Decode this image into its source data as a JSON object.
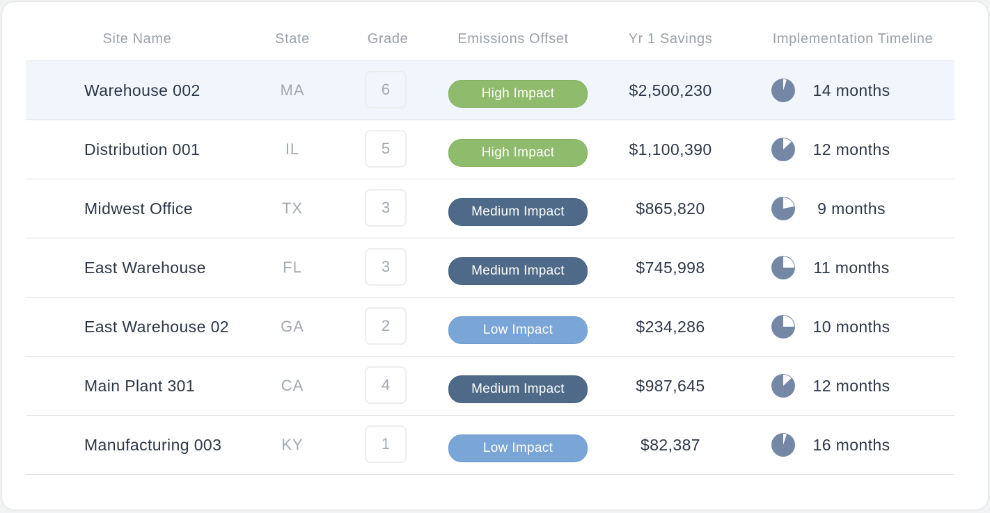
{
  "columns": [
    "Site Name",
    "State",
    "Grade",
    "Emissions Offset",
    "Yr 1 Savings",
    "Implementation Timeline"
  ],
  "rows": [
    {
      "name": "Warehouse 002",
      "state": "MA",
      "grade": "6",
      "impact": "High Impact",
      "impact_level": "high",
      "savings": "$2,500,230",
      "timeline": "14 months",
      "timeline_fraction": 0.05
    },
    {
      "name": "Distribution 001",
      "state": "IL",
      "grade": "5",
      "impact": "High Impact",
      "impact_level": "high",
      "savings": "$1,100,390",
      "timeline": "12 months",
      "timeline_fraction": 0.13
    },
    {
      "name": "Midwest Office",
      "state": "TX",
      "grade": "3",
      "impact": "Medium Impact",
      "impact_level": "medium",
      "savings": "$865,820",
      "timeline": "9 months",
      "timeline_fraction": 0.22
    },
    {
      "name": "East Warehouse",
      "state": "FL",
      "grade": "3",
      "impact": "Medium Impact",
      "impact_level": "medium",
      "savings": "$745,998",
      "timeline": "11 months",
      "timeline_fraction": 0.25
    },
    {
      "name": "East Warehouse 02",
      "state": "GA",
      "grade": "2",
      "impact": "Low Impact",
      "impact_level": "low",
      "savings": "$234,286",
      "timeline": "10 months",
      "timeline_fraction": 0.25
    },
    {
      "name": "Main Plant 301",
      "state": "CA",
      "grade": "4",
      "impact": "Medium Impact",
      "impact_level": "medium",
      "savings": "$987,645",
      "timeline": "12 months",
      "timeline_fraction": 0.13
    },
    {
      "name": "Manufacturing 003",
      "state": "KY",
      "grade": "1",
      "impact": "Low Impact",
      "impact_level": "low",
      "savings": "$82,387",
      "timeline": "16 months",
      "timeline_fraction": 0.05
    }
  ],
  "selected_row": 0,
  "colors": {
    "high": "#8fbb6c",
    "medium": "#4e6a88",
    "low": "#7aa6d7",
    "pie_fill": "#7488a6",
    "pie_slice": "#ffffff",
    "selected_row_bg": "#f0f6fb"
  },
  "icons": {
    "timeline": "pie-progress-icon"
  }
}
